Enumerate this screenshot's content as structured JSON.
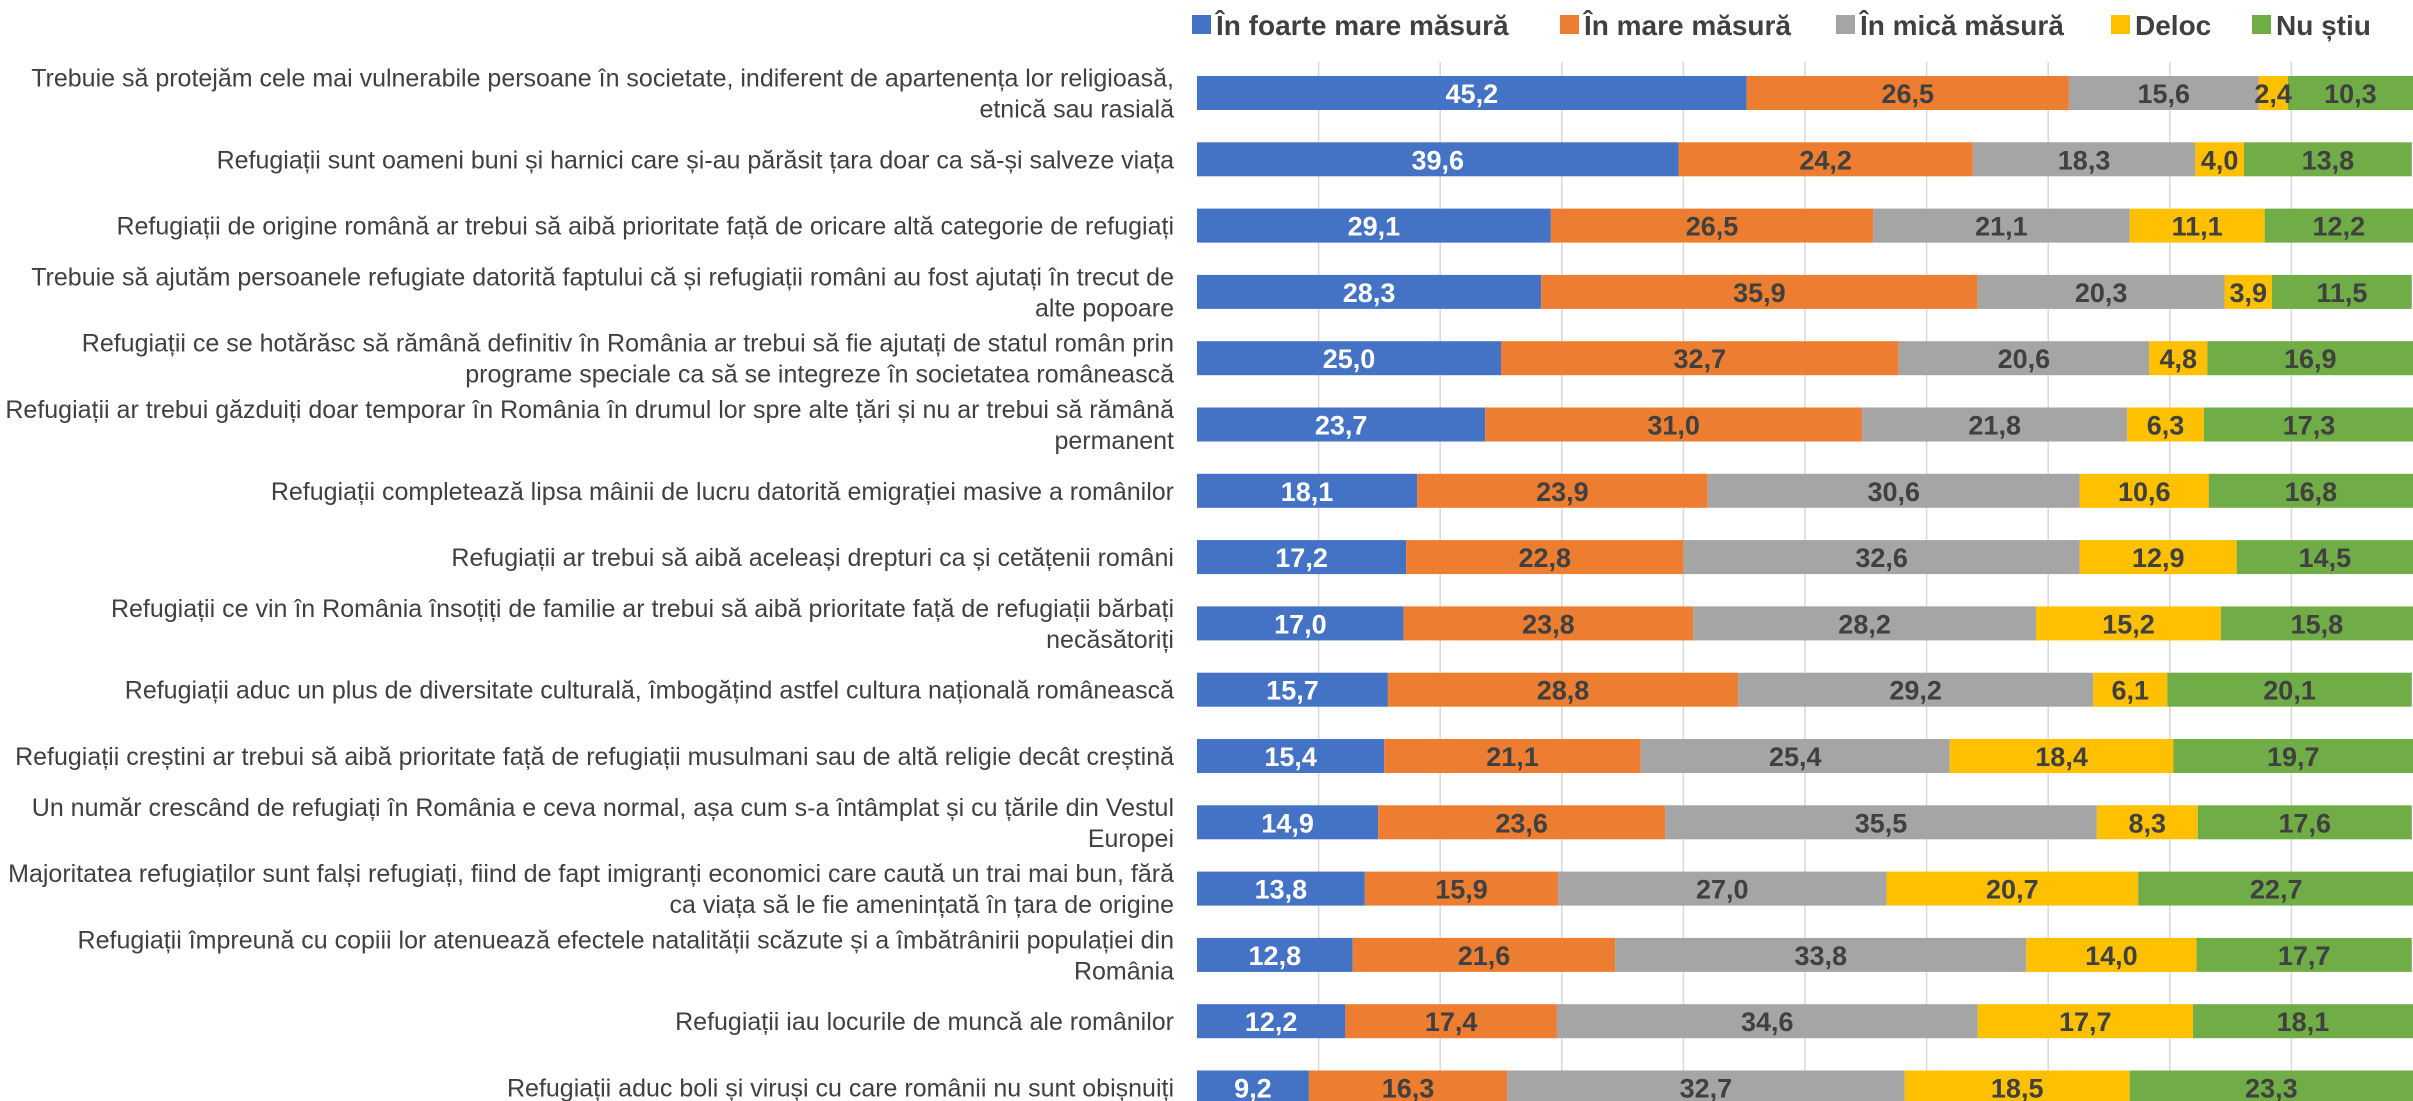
{
  "chart_data": {
    "type": "bar",
    "orientation": "horizontal",
    "stacked": true,
    "percent_stacked": true,
    "title": "",
    "xlabel": "",
    "ylabel": "",
    "xlim": [
      0,
      100
    ],
    "grid": true,
    "legend_position": "top",
    "categories": [
      [
        "Trebuie să protejăm cele mai vulnerabile persoane în societate, indiferent de apartenența lor religioasă,",
        "etnică sau rasială"
      ],
      [
        "Refugiații sunt oameni buni și harnici care și-au părăsit țara doar ca să-și salveze viața"
      ],
      [
        "Refugiații de origine română ar trebui să aibă prioritate față de oricare altă categorie de refugiați"
      ],
      [
        "Trebuie să ajutăm persoanele refugiate datorită faptului că și refugiații români au fost ajutați în trecut de",
        "alte popoare"
      ],
      [
        "Refugiații ce se hotărăsc să rămână definitiv în România ar trebui să fie ajutați de statul român prin",
        "programe speciale ca să se integreze în societatea românească"
      ],
      [
        "Refugiații ar trebui găzduiți doar temporar în România în drumul lor spre alte țări și nu ar trebui să rămână",
        "permanent"
      ],
      [
        "Refugiații completează lipsa mâinii de lucru datorită emigrației masive a românilor"
      ],
      [
        "Refugiații ar trebui să aibă aceleași drepturi ca și cetățenii români"
      ],
      [
        "Refugiații ce vin în România însoțiți de familie ar trebui să aibă prioritate față de refugiații bărbați",
        "necăsătoriți"
      ],
      [
        "Refugiații aduc un plus de diversitate culturală, îmbogățind astfel cultura națională românească"
      ],
      [
        "Refugiații creștini ar trebui să aibă prioritate față de refugiații musulmani sau de altă religie decât creștină"
      ],
      [
        "Un număr crescând de refugiați în România e ceva normal, așa cum s-a întâmplat și cu țările din Vestul",
        "Europei"
      ],
      [
        "Majoritatea refugiaților sunt falși refugiați, fiind de fapt imigranți economici care caută un trai mai bun, fără",
        "ca viața să le fie amenințată în țara de origine"
      ],
      [
        "Refugiații împreună cu copiii lor atenuează efectele natalității scăzute și a îmbătrânirii populației din",
        "România"
      ],
      [
        "Refugiații iau locurile de muncă ale românilor"
      ],
      [
        "Refugiații aduc boli și viruși cu care românii nu sunt obișnuiți"
      ]
    ],
    "series": [
      {
        "name": "În foarte mare măsură",
        "color": "#4472C4",
        "label_color": "#ffffff",
        "values": [
          45.2,
          39.6,
          29.1,
          28.3,
          25.0,
          23.7,
          18.1,
          17.2,
          17.0,
          15.7,
          15.4,
          14.9,
          13.8,
          12.8,
          12.2,
          9.2
        ],
        "labels": [
          "45,2",
          "39,6",
          "29,1",
          "28,3",
          "25,0",
          "23,7",
          "18,1",
          "17,2",
          "17,0",
          "15,7",
          "15,4",
          "14,9",
          "13,8",
          "12,8",
          "12,2",
          "9,2"
        ]
      },
      {
        "name": "În mare măsură",
        "color": "#ED7D31",
        "label_color": "#404040",
        "values": [
          26.5,
          24.2,
          26.5,
          35.9,
          32.7,
          31.0,
          23.9,
          22.8,
          23.8,
          28.8,
          21.1,
          23.6,
          15.9,
          21.6,
          17.4,
          16.3
        ],
        "labels": [
          "26,5",
          "24,2",
          "26,5",
          "35,9",
          "32,7",
          "31,0",
          "23,9",
          "22,8",
          "23,8",
          "28,8",
          "21,1",
          "23,6",
          "15,9",
          "21,6",
          "17,4",
          "16,3"
        ]
      },
      {
        "name": "În mică măsură",
        "color": "#A5A5A5",
        "label_color": "#404040",
        "values": [
          15.6,
          18.3,
          21.1,
          20.3,
          20.6,
          21.8,
          30.6,
          32.6,
          28.2,
          29.2,
          25.4,
          35.5,
          27.0,
          33.8,
          34.6,
          32.7
        ],
        "labels": [
          "15,6",
          "18,3",
          "21,1",
          "20,3",
          "20,6",
          "21,8",
          "30,6",
          "32,6",
          "28,2",
          "29,2",
          "25,4",
          "35,5",
          "27,0",
          "33,8",
          "34,6",
          "32,7"
        ]
      },
      {
        "name": "Deloc",
        "color": "#FFC000",
        "label_color": "#404040",
        "values": [
          2.4,
          4.0,
          11.1,
          3.9,
          4.8,
          6.3,
          10.6,
          12.9,
          15.2,
          6.1,
          18.4,
          8.3,
          20.7,
          14.0,
          17.7,
          18.5
        ],
        "labels": [
          "2,4",
          "4,0",
          "11,1",
          "3,9",
          "4,8",
          "6,3",
          "10,6",
          "12,9",
          "15,2",
          "6,1",
          "18,4",
          "8,3",
          "20,7",
          "14,0",
          "17,7",
          "18,5"
        ]
      },
      {
        "name": "Nu știu",
        "color": "#70AD47",
        "label_color": "#404040",
        "values": [
          10.3,
          13.8,
          12.2,
          11.5,
          16.9,
          17.3,
          16.8,
          14.5,
          15.8,
          20.1,
          19.7,
          17.6,
          22.7,
          17.7,
          18.1,
          23.3
        ],
        "labels": [
          "10,3",
          "13,8",
          "12,2",
          "11,5",
          "16,9",
          "17,3",
          "16,8",
          "14,5",
          "15,8",
          "20,1",
          "19,7",
          "17,6",
          "22,7",
          "17,7",
          "18,1",
          "23,3"
        ]
      }
    ]
  }
}
